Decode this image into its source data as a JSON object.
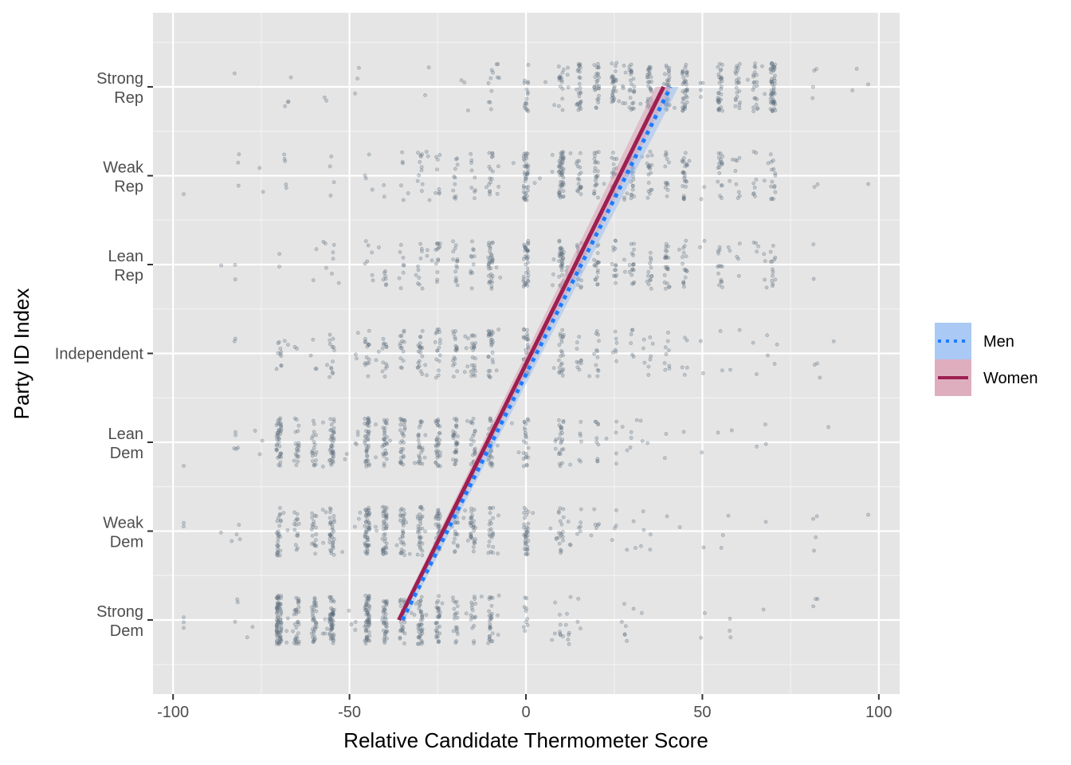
{
  "chart_data": {
    "type": "scatter",
    "xlabel": "Relative Candidate Thermometer Score",
    "ylabel": "Party ID Index",
    "xlim": [
      -102,
      106
    ],
    "ylim": [
      0.3,
      7.9
    ],
    "x_ticks": [
      -100,
      -50,
      0,
      50,
      100
    ],
    "x_tick_labels": [
      "-100",
      "-50",
      "0",
      "50",
      "100"
    ],
    "y_categories": [
      {
        "value": 1,
        "lines": [
          "Strong",
          "Dem"
        ]
      },
      {
        "value": 2,
        "lines": [
          "Weak",
          "Dem"
        ]
      },
      {
        "value": 3,
        "lines": [
          "Lean",
          "Dem"
        ]
      },
      {
        "value": 4,
        "lines": [
          "Independent"
        ]
      },
      {
        "value": 5,
        "lines": [
          "Lean",
          "Rep"
        ]
      },
      {
        "value": 6,
        "lines": [
          "Weak",
          "Rep"
        ]
      },
      {
        "value": 7,
        "lines": [
          "Strong",
          "Rep"
        ]
      }
    ],
    "grid": true,
    "legend_position": "right",
    "scatter_color": "#5f6f7e",
    "points_per_row": [
      {
        "party": 1,
        "mean": -45,
        "sd": 24,
        "n": 520
      },
      {
        "party": 2,
        "mean": -30,
        "sd": 28,
        "n": 470
      },
      {
        "party": 3,
        "mean": -33,
        "sd": 27,
        "n": 470
      },
      {
        "party": 4,
        "mean": -12,
        "sd": 30,
        "n": 330
      },
      {
        "party": 5,
        "mean": 12,
        "sd": 30,
        "n": 380
      },
      {
        "party": 6,
        "mean": 18,
        "sd": 30,
        "n": 390
      },
      {
        "party": 7,
        "mean": 40,
        "sd": 24,
        "n": 420
      }
    ],
    "series": [
      {
        "name": "Men",
        "line_style": "dotted",
        "color": "#1f7bff",
        "band_color": "#9bbff2",
        "x": [
          -35,
          41
        ],
        "y": [
          1,
          7
        ]
      },
      {
        "name": "Women",
        "line_style": "solid",
        "color": "#9e1f50",
        "band_color": "#d8a0b4",
        "x": [
          -36,
          39
        ],
        "y": [
          1,
          7
        ]
      }
    ]
  }
}
